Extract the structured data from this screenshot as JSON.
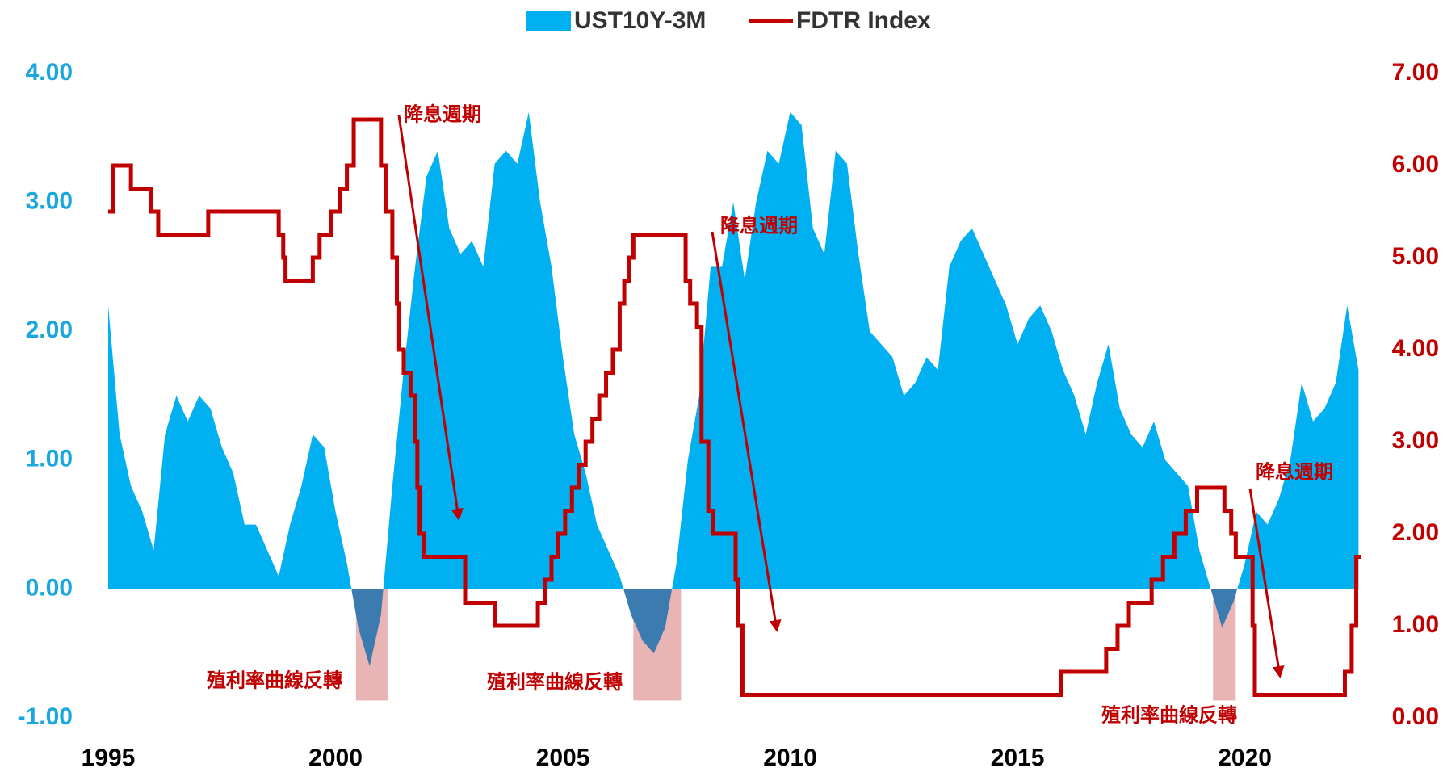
{
  "chart_data": {
    "type": "area-step-dual",
    "xlim": [
      1995,
      2022.6
    ],
    "xticks": [
      1995,
      2000,
      2005,
      2010,
      2015,
      2020
    ],
    "ylim": [
      -1,
      4
    ],
    "yticks": [
      {
        "value": -1,
        "label": "-1.00"
      },
      {
        "value": 0,
        "label": "0.00"
      },
      {
        "value": 1,
        "label": "1.00"
      },
      {
        "value": 2,
        "label": "2.00"
      },
      {
        "value": 3,
        "label": "3.00"
      },
      {
        "value": 4,
        "label": "4.00"
      }
    ],
    "y2lim": [
      0,
      7
    ],
    "y2ticks": [
      {
        "value": 0,
        "label": "0.00"
      },
      {
        "value": 1,
        "label": "1.00"
      },
      {
        "value": 2,
        "label": "2.00"
      },
      {
        "value": 3,
        "label": "3.00"
      },
      {
        "value": 4,
        "label": "4.00"
      },
      {
        "value": 5,
        "label": "5.00"
      },
      {
        "value": 6,
        "label": "6.00"
      },
      {
        "value": 7,
        "label": "7.00"
      }
    ],
    "legend": "top",
    "series": [
      {
        "name": "UST10Y-3M",
        "color": "#00b0f0",
        "negative_color": "#3b7bb0",
        "kind": "area",
        "x": [
          1995.0,
          1995.25,
          1995.5,
          1995.75,
          1996.0,
          1996.25,
          1996.5,
          1996.75,
          1997.0,
          1997.25,
          1997.5,
          1997.75,
          1998.0,
          1998.25,
          1998.5,
          1998.75,
          1999.0,
          1999.25,
          1999.5,
          1999.75,
          2000.0,
          2000.25,
          2000.5,
          2000.75,
          2001.0,
          2001.25,
          2001.5,
          2001.75,
          2002.0,
          2002.25,
          2002.5,
          2002.75,
          2003.0,
          2003.25,
          2003.5,
          2003.75,
          2004.0,
          2004.25,
          2004.5,
          2004.75,
          2005.0,
          2005.25,
          2005.5,
          2005.75,
          2006.0,
          2006.25,
          2006.5,
          2006.75,
          2007.0,
          2007.25,
          2007.5,
          2007.75,
          2008.0,
          2008.25,
          2008.5,
          2008.75,
          2009.0,
          2009.25,
          2009.5,
          2009.75,
          2010.0,
          2010.25,
          2010.5,
          2010.75,
          2011.0,
          2011.25,
          2011.5,
          2011.75,
          2012.0,
          2012.25,
          2012.5,
          2012.75,
          2013.0,
          2013.25,
          2013.5,
          2013.75,
          2014.0,
          2014.25,
          2014.5,
          2014.75,
          2015.0,
          2015.25,
          2015.5,
          2015.75,
          2016.0,
          2016.25,
          2016.5,
          2016.75,
          2017.0,
          2017.25,
          2017.5,
          2017.75,
          2018.0,
          2018.25,
          2018.5,
          2018.75,
          2019.0,
          2019.25,
          2019.5,
          2019.75,
          2020.0,
          2020.25,
          2020.5,
          2020.75,
          2021.0,
          2021.25,
          2021.5,
          2021.75,
          2022.0,
          2022.25,
          2022.5
        ],
        "values": [
          2.2,
          1.2,
          0.8,
          0.6,
          0.3,
          1.2,
          1.5,
          1.3,
          1.5,
          1.4,
          1.1,
          0.9,
          0.5,
          0.5,
          0.3,
          0.1,
          0.5,
          0.8,
          1.2,
          1.1,
          0.6,
          0.2,
          -0.3,
          -0.6,
          -0.2,
          0.8,
          1.7,
          2.5,
          3.2,
          3.4,
          2.8,
          2.6,
          2.7,
          2.5,
          3.3,
          3.4,
          3.3,
          3.7,
          3.0,
          2.5,
          1.8,
          1.2,
          0.9,
          0.5,
          0.3,
          0.1,
          -0.2,
          -0.4,
          -0.5,
          -0.3,
          0.2,
          1.0,
          1.5,
          2.5,
          2.5,
          3.0,
          2.4,
          3.0,
          3.4,
          3.3,
          3.7,
          3.6,
          2.8,
          2.6,
          3.4,
          3.3,
          2.6,
          2.0,
          1.9,
          1.8,
          1.5,
          1.6,
          1.8,
          1.7,
          2.5,
          2.7,
          2.8,
          2.6,
          2.4,
          2.2,
          1.9,
          2.1,
          2.2,
          2.0,
          1.7,
          1.5,
          1.2,
          1.6,
          1.9,
          1.4,
          1.2,
          1.1,
          1.3,
          1.0,
          0.9,
          0.8,
          0.3,
          0.0,
          -0.3,
          -0.1,
          0.2,
          0.6,
          0.5,
          0.7,
          1.0,
          1.6,
          1.3,
          1.4,
          1.6,
          2.2,
          1.7
        ]
      },
      {
        "name": "FDTR Index",
        "color": "#c00000",
        "kind": "step",
        "axis": "y2",
        "x": [
          1995.0,
          1995.1,
          1995.5,
          1995.95,
          1996.1,
          1997.2,
          1998.75,
          1998.85,
          1998.9,
          1999.5,
          1999.65,
          1999.9,
          2000.1,
          2000.25,
          2000.4,
          2001.0,
          2001.1,
          2001.25,
          2001.35,
          2001.4,
          2001.5,
          2001.65,
          2001.75,
          2001.8,
          2001.85,
          2001.95,
          2002.85,
          2003.5,
          2004.45,
          2004.6,
          2004.75,
          2004.9,
          2005.05,
          2005.2,
          2005.35,
          2005.5,
          2005.65,
          2005.8,
          2005.95,
          2006.1,
          2006.25,
          2006.35,
          2006.45,
          2006.55,
          2007.7,
          2007.8,
          2007.95,
          2008.05,
          2008.2,
          2008.3,
          2008.8,
          2008.85,
          2008.95,
          2015.95,
          2016.95,
          2017.2,
          2017.45,
          2017.95,
          2018.2,
          2018.45,
          2018.7,
          2018.95,
          2019.55,
          2019.7,
          2019.8,
          2020.17,
          2020.22,
          2022.2,
          2022.35,
          2022.45,
          2022.55
        ],
        "values": [
          5.5,
          6.0,
          5.75,
          5.5,
          5.25,
          5.5,
          5.25,
          5.0,
          4.75,
          5.0,
          5.25,
          5.5,
          5.75,
          6.0,
          6.5,
          6.0,
          5.5,
          5.0,
          4.5,
          4.0,
          3.75,
          3.5,
          3.0,
          2.5,
          2.0,
          1.75,
          1.25,
          1.0,
          1.25,
          1.5,
          1.75,
          2.0,
          2.25,
          2.5,
          2.75,
          3.0,
          3.25,
          3.5,
          3.75,
          4.0,
          4.5,
          4.75,
          5.0,
          5.25,
          4.75,
          4.5,
          4.25,
          3.0,
          2.25,
          2.0,
          1.5,
          1.0,
          0.25,
          0.5,
          0.75,
          1.0,
          1.25,
          1.5,
          1.75,
          2.0,
          2.25,
          2.5,
          2.25,
          2.0,
          1.75,
          1.0,
          0.25,
          0.5,
          1.0,
          1.75,
          1.75
        ]
      }
    ],
    "shaded_periods": [
      [
        2000.45,
        2001.15
      ],
      [
        2006.55,
        2007.6
      ],
      [
        2019.3,
        2019.8
      ]
    ],
    "shade_color": "#e8b4b4",
    "annotations": [
      "降息週期",
      "降息週期",
      "降息週期",
      "殖利率曲線反轉",
      "殖利率曲線反轉",
      "殖利率曲線反轉"
    ]
  }
}
